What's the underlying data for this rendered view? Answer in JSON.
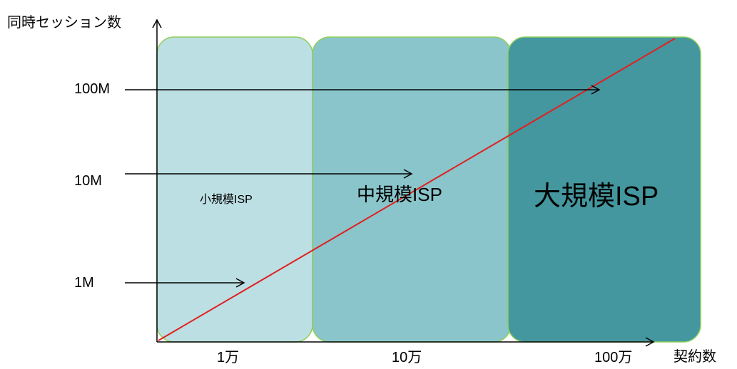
{
  "axes": {
    "y_title": "同時セッション数",
    "x_title": "契約数"
  },
  "y_labels": [
    "100M",
    "10M",
    "1M"
  ],
  "x_labels": [
    "1万",
    "10万",
    "100万"
  ],
  "segments": [
    {
      "label": "小規模ISP",
      "color": "#bcdfe3"
    },
    {
      "label": "中規模ISP",
      "color": "#8ac5cb"
    },
    {
      "label": "大規模ISP",
      "color": "#44979f"
    }
  ],
  "colors": {
    "axis": "#000000",
    "trend_line": "#e02020",
    "segment_border": "#8fce5a"
  }
}
